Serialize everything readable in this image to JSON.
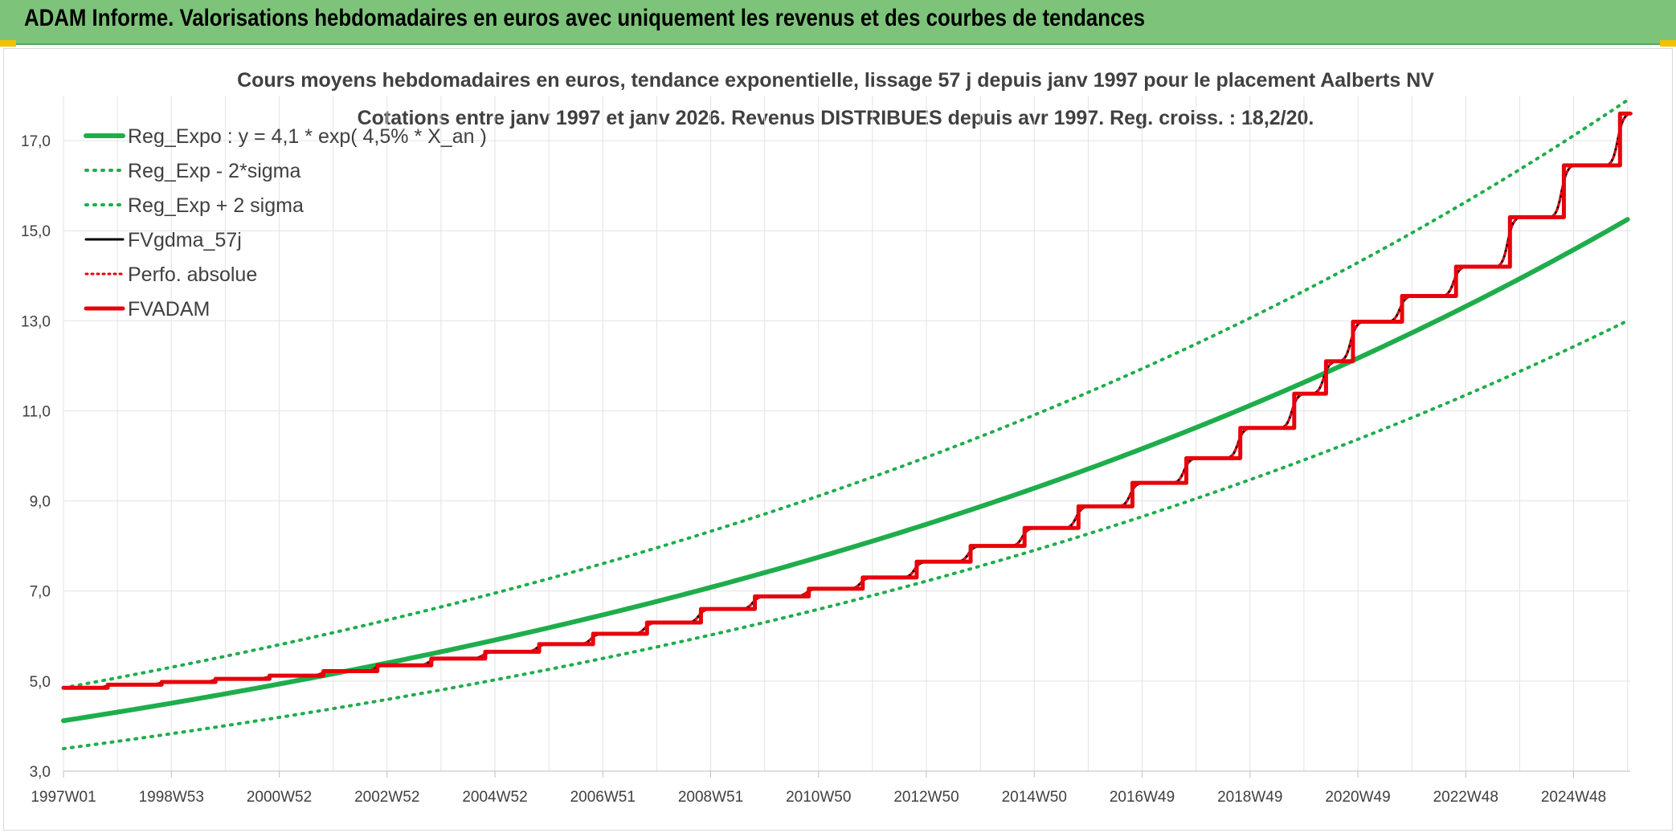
{
  "header": {
    "title": "ADAM Informe. Valorisations hebdomadaires en euros avec uniquement les revenus et des courbes de tendances"
  },
  "chart_data": {
    "type": "line",
    "title": "Cours moyens hebdomadaires en euros, tendance exponentielle, lissage 57 j depuis janv 1997 pour le placement Aalberts NV",
    "subtitle": "Cotations entre janv 1997 et janv 2026. Revenus DISTRIBUES depuis avr 1997. Reg. croiss. : 18,2/20.",
    "xlabel": "",
    "ylabel": "",
    "ylim": [
      3.0,
      18.0
    ],
    "y_ticks": [
      "3,0",
      "5,0",
      "7,0",
      "9,0",
      "11,0",
      "13,0",
      "15,0",
      "17,0"
    ],
    "x_range": [
      1997.0,
      2026.05
    ],
    "x_ticks": [
      {
        "label": "1997W01",
        "x": 1997.0
      },
      {
        "label": "1998W53",
        "x": 1999.0
      },
      {
        "label": "2000W52",
        "x": 2001.0
      },
      {
        "label": "2002W52",
        "x": 2003.0
      },
      {
        "label": "2004W52",
        "x": 2005.0
      },
      {
        "label": "2006W51",
        "x": 2007.0
      },
      {
        "label": "2008W51",
        "x": 2009.0
      },
      {
        "label": "2010W50",
        "x": 2011.0
      },
      {
        "label": "2012W50",
        "x": 2013.0
      },
      {
        "label": "2014W50",
        "x": 2015.0
      },
      {
        "label": "2016W49",
        "x": 2017.0
      },
      {
        "label": "2018W49",
        "x": 2019.0
      },
      {
        "label": "2020W49",
        "x": 2021.0
      },
      {
        "label": "2022W48",
        "x": 2023.0
      },
      {
        "label": "2024W48",
        "x": 2025.0
      }
    ],
    "grid": true,
    "legend_position": "top-left",
    "series": [
      {
        "name": "Reg_Expo : y = 4,1 * exp( 4,5% *  X_an )",
        "style": "solid",
        "color": "#1fad4c",
        "x": [
          1997,
          1999,
          2001,
          2003,
          2005,
          2007,
          2009,
          2011,
          2013,
          2015,
          2017,
          2019,
          2021,
          2023,
          2025,
          2026
        ],
        "values": [
          4.12,
          4.5,
          4.92,
          5.38,
          5.88,
          6.43,
          7.03,
          7.68,
          8.4,
          9.18,
          10.03,
          10.97,
          11.99,
          13.1,
          14.5,
          15.25
        ]
      },
      {
        "name": "Reg_Exp - 2*sigma",
        "style": "dotted",
        "color": "#1fad4c",
        "x": [
          1997,
          1999,
          2001,
          2003,
          2005,
          2007,
          2009,
          2011,
          2013,
          2015,
          2017,
          2019,
          2021,
          2023,
          2025,
          2026
        ],
        "values": [
          3.5,
          3.83,
          4.19,
          4.58,
          5.0,
          5.47,
          5.98,
          6.54,
          7.15,
          7.81,
          8.54,
          9.33,
          10.2,
          11.15,
          12.37,
          13.0
        ]
      },
      {
        "name": "Reg_Exp + 2 sigma",
        "style": "dotted",
        "color": "#1fad4c",
        "x": [
          1997,
          1999,
          2001,
          2003,
          2005,
          2007,
          2009,
          2011,
          2013,
          2015,
          2017,
          2019,
          2021,
          2023,
          2025,
          2026
        ],
        "values": [
          4.85,
          5.3,
          5.8,
          6.34,
          6.93,
          7.57,
          8.28,
          9.05,
          9.89,
          10.81,
          11.82,
          12.92,
          14.12,
          15.44,
          17.08,
          17.9
        ]
      },
      {
        "name": "FVgdma_57j",
        "style": "solid",
        "color": "#000000",
        "x": [
          1997.0,
          1998.0,
          1999.0,
          2000.0,
          2001.0,
          2002.0,
          2003.0,
          2004.0,
          2005.0,
          2006.0,
          2007.0,
          2008.0,
          2009.0,
          2010.0,
          2011.0,
          2012.0,
          2013.0,
          2014.0,
          2015.0,
          2016.0,
          2017.0,
          2018.0,
          2019.0,
          2020.0,
          2020.5,
          2021.0,
          2022.0,
          2023.0,
          2024.0,
          2025.0,
          2026.05
        ],
        "values": [
          4.85,
          4.92,
          4.98,
          5.05,
          5.12,
          5.22,
          5.35,
          5.5,
          5.65,
          5.82,
          6.05,
          6.3,
          6.6,
          6.88,
          7.05,
          7.3,
          7.65,
          8.0,
          8.4,
          8.88,
          9.4,
          9.95,
          10.62,
          11.38,
          12.1,
          12.98,
          13.55,
          14.2,
          15.3,
          16.45,
          17.6
        ]
      },
      {
        "name": "Perfo. absolue",
        "style": "dotted",
        "color": "#e8000b",
        "x": [
          1997.0,
          1998.0,
          1999.0,
          2000.0,
          2001.0,
          2002.0,
          2003.0,
          2004.0,
          2005.0,
          2006.0,
          2007.0,
          2008.0,
          2009.0,
          2010.0,
          2011.0,
          2012.0,
          2013.0,
          2014.0,
          2015.0,
          2016.0,
          2017.0,
          2018.0,
          2019.0,
          2020.0,
          2020.5,
          2021.0,
          2022.0,
          2023.0,
          2024.0,
          2025.0,
          2026.05
        ],
        "values": [
          4.85,
          4.92,
          4.98,
          5.05,
          5.12,
          5.22,
          5.35,
          5.5,
          5.65,
          5.82,
          6.05,
          6.3,
          6.6,
          6.88,
          7.05,
          7.3,
          7.65,
          8.0,
          8.4,
          8.88,
          9.4,
          9.95,
          10.62,
          11.38,
          12.1,
          12.98,
          13.55,
          14.2,
          15.3,
          16.45,
          17.6
        ]
      },
      {
        "name": "FVADAM",
        "style": "step",
        "color": "#e8000b",
        "x": [
          1997.0,
          1998.0,
          1999.0,
          2000.0,
          2001.0,
          2002.0,
          2003.0,
          2004.0,
          2005.0,
          2006.0,
          2007.0,
          2008.0,
          2009.0,
          2010.0,
          2011.0,
          2012.0,
          2013.0,
          2014.0,
          2015.0,
          2016.0,
          2017.0,
          2018.0,
          2019.0,
          2020.0,
          2020.5,
          2021.0,
          2022.0,
          2023.0,
          2024.0,
          2025.0,
          2026.05
        ],
        "values": [
          4.85,
          4.92,
          4.98,
          5.05,
          5.12,
          5.22,
          5.35,
          5.5,
          5.65,
          5.82,
          6.05,
          6.3,
          6.6,
          6.88,
          7.05,
          7.3,
          7.65,
          8.0,
          8.4,
          8.88,
          9.4,
          9.95,
          10.62,
          11.38,
          12.1,
          12.98,
          13.55,
          14.2,
          15.3,
          16.45,
          17.6
        ]
      }
    ]
  }
}
